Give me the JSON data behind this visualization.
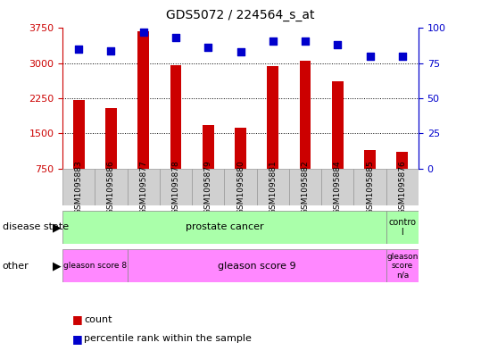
{
  "title": "GDS5072 / 224564_s_at",
  "samples": [
    "GSM1095883",
    "GSM1095886",
    "GSM1095877",
    "GSM1095878",
    "GSM1095879",
    "GSM1095880",
    "GSM1095881",
    "GSM1095882",
    "GSM1095884",
    "GSM1095885",
    "GSM1095876"
  ],
  "counts": [
    2220,
    2050,
    3680,
    2960,
    1680,
    1620,
    2930,
    3060,
    2620,
    1150,
    1100
  ],
  "percentile_ranks": [
    85,
    84,
    97,
    93,
    86,
    83,
    91,
    91,
    88,
    80,
    80
  ],
  "bar_color": "#cc0000",
  "dot_color": "#0000cc",
  "ylim_left": [
    750,
    3750
  ],
  "ylim_right": [
    0,
    100
  ],
  "yticks_left": [
    750,
    1500,
    2250,
    3000,
    3750
  ],
  "yticks_right": [
    0,
    25,
    50,
    75,
    100
  ],
  "disease_state_groups": [
    {
      "label": "prostate cancer",
      "start": 0,
      "end": 9,
      "color": "#aaffaa"
    },
    {
      "label": "contro\nl",
      "start": 10,
      "end": 10,
      "color": "#aaffaa"
    }
  ],
  "other_groups": [
    {
      "label": "gleason score 8",
      "start": 0,
      "end": 1,
      "color": "#ff88ff"
    },
    {
      "label": "gleason score 9",
      "start": 2,
      "end": 9,
      "color": "#ff88ff"
    },
    {
      "label": "gleason\nscore\nn/a",
      "start": 10,
      "end": 10,
      "color": "#ff88ff"
    }
  ],
  "legend_items": [
    {
      "color": "#cc0000",
      "label": "count"
    },
    {
      "color": "#0000cc",
      "label": "percentile rank within the sample"
    }
  ],
  "row_labels": [
    "disease state",
    "other"
  ],
  "background_color": "#ffffff",
  "plot_bg_color": "#ffffff",
  "ticklabel_bg_color": "#dddddd"
}
